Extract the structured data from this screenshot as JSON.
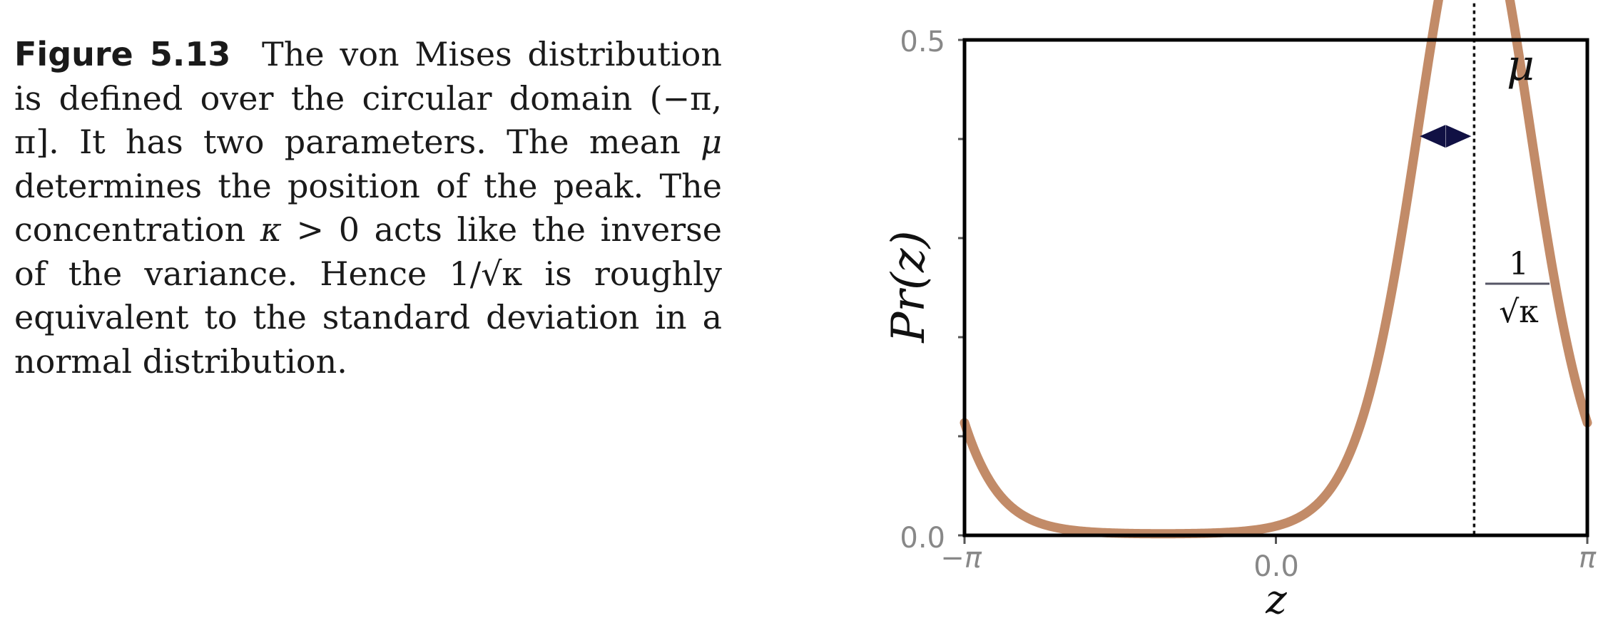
{
  "caption": {
    "label": "Figure 5.13",
    "p1": "The von Mises distribu­tion is defined over the circular do­main (−π, π]. It has two parameters. The mean ",
    "mu": "μ",
    "p2": " determines the position of the peak. The concentration ",
    "kappa": "κ",
    "p3": " > 0 acts like the inverse of the vari­ance. Hence 1/√κ is roughly equivalent to the standard deviation in a normal distribution."
  },
  "chart_data": {
    "type": "line",
    "xlabel": "z",
    "ylabel": "Pr(z)",
    "xlim": [
      -3.14159,
      3.14159
    ],
    "ylim": [
      0.0,
      0.5
    ],
    "x_tick_labels": [
      "−π",
      "0.0",
      "π"
    ],
    "y_tick_labels": [
      "0.0",
      "0.5"
    ],
    "series": [
      {
        "distribution": "von Mises",
        "mu": 2.0,
        "kappa": 3.0
      }
    ],
    "line_color": "#c28b68",
    "annotations": {
      "peak_label": "μ",
      "width_numerator": "1",
      "width_denominator": "√κ"
    },
    "grid": false,
    "legend": "none"
  }
}
